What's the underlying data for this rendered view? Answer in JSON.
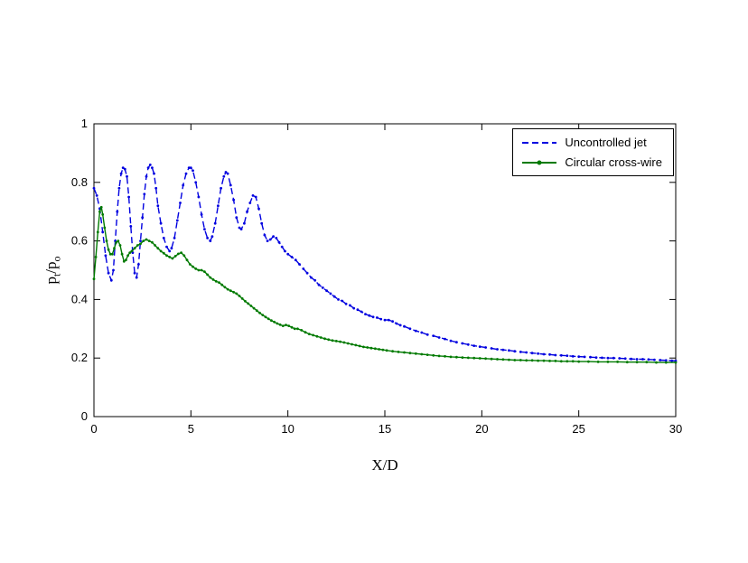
{
  "chart_data": {
    "type": "line",
    "title": "",
    "xlabel": "X/D",
    "ylabel": "pt/po",
    "ylabel_parts": {
      "p1": "p",
      "s1": "t",
      "sep": "/",
      "p2": "p",
      "s2": "o"
    },
    "xlim": [
      0,
      30
    ],
    "ylim": [
      0,
      1
    ],
    "x_ticks": [
      0,
      5,
      10,
      15,
      20,
      25,
      30
    ],
    "y_ticks": [
      0,
      0.2,
      0.4,
      0.6,
      0.8,
      1
    ],
    "grid": false,
    "legend_position": "top-right",
    "series": [
      {
        "name": "Uncontrolled jet",
        "color": "#0000e0",
        "line_style": "dashed",
        "marker": "dot",
        "points": [
          [
            0,
            0.78
          ],
          [
            0.15,
            0.755
          ],
          [
            0.3,
            0.71
          ],
          [
            0.45,
            0.63
          ],
          [
            0.6,
            0.55
          ],
          [
            0.75,
            0.49
          ],
          [
            0.9,
            0.465
          ],
          [
            1.0,
            0.5
          ],
          [
            1.1,
            0.6
          ],
          [
            1.2,
            0.7
          ],
          [
            1.3,
            0.78
          ],
          [
            1.4,
            0.83
          ],
          [
            1.5,
            0.85
          ],
          [
            1.6,
            0.845
          ],
          [
            1.7,
            0.82
          ],
          [
            1.8,
            0.75
          ],
          [
            1.9,
            0.65
          ],
          [
            2.0,
            0.56
          ],
          [
            2.1,
            0.49
          ],
          [
            2.2,
            0.475
          ],
          [
            2.3,
            0.52
          ],
          [
            2.4,
            0.6
          ],
          [
            2.5,
            0.68
          ],
          [
            2.6,
            0.76
          ],
          [
            2.7,
            0.82
          ],
          [
            2.8,
            0.85
          ],
          [
            2.9,
            0.86
          ],
          [
            3.0,
            0.85
          ],
          [
            3.1,
            0.83
          ],
          [
            3.2,
            0.78
          ],
          [
            3.3,
            0.72
          ],
          [
            3.45,
            0.66
          ],
          [
            3.6,
            0.61
          ],
          [
            3.75,
            0.58
          ],
          [
            3.9,
            0.565
          ],
          [
            4.0,
            0.575
          ],
          [
            4.15,
            0.61
          ],
          [
            4.3,
            0.67
          ],
          [
            4.45,
            0.73
          ],
          [
            4.6,
            0.79
          ],
          [
            4.75,
            0.83
          ],
          [
            4.9,
            0.85
          ],
          [
            5.0,
            0.85
          ],
          [
            5.1,
            0.84
          ],
          [
            5.25,
            0.8
          ],
          [
            5.4,
            0.75
          ],
          [
            5.55,
            0.69
          ],
          [
            5.7,
            0.64
          ],
          [
            5.85,
            0.61
          ],
          [
            6.0,
            0.6
          ],
          [
            6.1,
            0.615
          ],
          [
            6.25,
            0.66
          ],
          [
            6.4,
            0.72
          ],
          [
            6.55,
            0.78
          ],
          [
            6.7,
            0.82
          ],
          [
            6.8,
            0.835
          ],
          [
            6.9,
            0.83
          ],
          [
            7.05,
            0.79
          ],
          [
            7.2,
            0.74
          ],
          [
            7.35,
            0.68
          ],
          [
            7.5,
            0.645
          ],
          [
            7.6,
            0.64
          ],
          [
            7.75,
            0.66
          ],
          [
            7.9,
            0.7
          ],
          [
            8.05,
            0.73
          ],
          [
            8.2,
            0.755
          ],
          [
            8.35,
            0.75
          ],
          [
            8.5,
            0.71
          ],
          [
            8.65,
            0.66
          ],
          [
            8.8,
            0.62
          ],
          [
            8.95,
            0.6
          ],
          [
            9.1,
            0.605
          ],
          [
            9.25,
            0.615
          ],
          [
            9.4,
            0.61
          ],
          [
            9.55,
            0.595
          ],
          [
            9.7,
            0.58
          ],
          [
            9.85,
            0.565
          ],
          [
            10.0,
            0.555
          ],
          [
            10.2,
            0.545
          ],
          [
            10.4,
            0.535
          ],
          [
            10.6,
            0.52
          ],
          [
            10.8,
            0.505
          ],
          [
            11.0,
            0.49
          ],
          [
            11.2,
            0.475
          ],
          [
            11.4,
            0.465
          ],
          [
            11.6,
            0.45
          ],
          [
            11.8,
            0.44
          ],
          [
            12.0,
            0.43
          ],
          [
            12.2,
            0.42
          ],
          [
            12.4,
            0.41
          ],
          [
            12.6,
            0.4
          ],
          [
            12.8,
            0.395
          ],
          [
            13.0,
            0.385
          ],
          [
            13.2,
            0.38
          ],
          [
            13.4,
            0.37
          ],
          [
            13.6,
            0.365
          ],
          [
            13.8,
            0.358
          ],
          [
            14.0,
            0.35
          ],
          [
            14.2,
            0.345
          ],
          [
            14.4,
            0.34
          ],
          [
            14.6,
            0.338
          ],
          [
            14.8,
            0.333
          ],
          [
            15.0,
            0.33
          ],
          [
            15.2,
            0.33
          ],
          [
            15.4,
            0.325
          ],
          [
            15.6,
            0.318
          ],
          [
            15.8,
            0.312
          ],
          [
            16.0,
            0.308
          ],
          [
            16.3,
            0.3
          ],
          [
            16.6,
            0.293
          ],
          [
            16.9,
            0.287
          ],
          [
            17.2,
            0.28
          ],
          [
            17.5,
            0.276
          ],
          [
            17.8,
            0.27
          ],
          [
            18.1,
            0.265
          ],
          [
            18.4,
            0.259
          ],
          [
            18.7,
            0.254
          ],
          [
            19.0,
            0.25
          ],
          [
            19.3,
            0.246
          ],
          [
            19.6,
            0.242
          ],
          [
            19.9,
            0.239
          ],
          [
            20.2,
            0.236
          ],
          [
            20.5,
            0.233
          ],
          [
            20.8,
            0.23
          ],
          [
            21.1,
            0.228
          ],
          [
            21.4,
            0.226
          ],
          [
            21.7,
            0.223
          ],
          [
            22.0,
            0.221
          ],
          [
            22.3,
            0.219
          ],
          [
            22.6,
            0.217
          ],
          [
            22.9,
            0.215
          ],
          [
            23.2,
            0.213
          ],
          [
            23.5,
            0.212
          ],
          [
            23.8,
            0.21
          ],
          [
            24.1,
            0.209
          ],
          [
            24.4,
            0.208
          ],
          [
            24.7,
            0.206
          ],
          [
            25.0,
            0.205
          ],
          [
            25.3,
            0.204
          ],
          [
            25.6,
            0.203
          ],
          [
            25.9,
            0.202
          ],
          [
            26.2,
            0.201
          ],
          [
            26.5,
            0.2
          ],
          [
            26.8,
            0.2
          ],
          [
            27.1,
            0.199
          ],
          [
            27.4,
            0.198
          ],
          [
            27.7,
            0.197
          ],
          [
            28.0,
            0.196
          ],
          [
            28.3,
            0.196
          ],
          [
            28.6,
            0.195
          ],
          [
            28.9,
            0.194
          ],
          [
            29.2,
            0.193
          ],
          [
            29.5,
            0.192
          ],
          [
            29.8,
            0.191
          ],
          [
            30.0,
            0.19
          ]
        ]
      },
      {
        "name": "Circular cross-wire",
        "color": "#007a00",
        "line_style": "solid",
        "marker": "dot",
        "points": [
          [
            0,
            0.47
          ],
          [
            0.1,
            0.545
          ],
          [
            0.2,
            0.63
          ],
          [
            0.3,
            0.7
          ],
          [
            0.38,
            0.715
          ],
          [
            0.45,
            0.69
          ],
          [
            0.55,
            0.645
          ],
          [
            0.65,
            0.6
          ],
          [
            0.75,
            0.57
          ],
          [
            0.85,
            0.555
          ],
          [
            0.95,
            0.555
          ],
          [
            1.05,
            0.575
          ],
          [
            1.15,
            0.595
          ],
          [
            1.25,
            0.6
          ],
          [
            1.35,
            0.585
          ],
          [
            1.45,
            0.555
          ],
          [
            1.55,
            0.53
          ],
          [
            1.65,
            0.535
          ],
          [
            1.75,
            0.55
          ],
          [
            1.85,
            0.56
          ],
          [
            1.95,
            0.565
          ],
          [
            2.1,
            0.575
          ],
          [
            2.25,
            0.585
          ],
          [
            2.4,
            0.59
          ],
          [
            2.55,
            0.6
          ],
          [
            2.7,
            0.605
          ],
          [
            2.85,
            0.6
          ],
          [
            3.0,
            0.595
          ],
          [
            3.15,
            0.585
          ],
          [
            3.3,
            0.575
          ],
          [
            3.45,
            0.565
          ],
          [
            3.6,
            0.558
          ],
          [
            3.75,
            0.55
          ],
          [
            3.9,
            0.545
          ],
          [
            4.05,
            0.54
          ],
          [
            4.2,
            0.548
          ],
          [
            4.35,
            0.556
          ],
          [
            4.5,
            0.56
          ],
          [
            4.65,
            0.55
          ],
          [
            4.8,
            0.535
          ],
          [
            4.95,
            0.52
          ],
          [
            5.1,
            0.512
          ],
          [
            5.25,
            0.505
          ],
          [
            5.4,
            0.5
          ],
          [
            5.55,
            0.5
          ],
          [
            5.7,
            0.495
          ],
          [
            5.85,
            0.485
          ],
          [
            6.0,
            0.475
          ],
          [
            6.15,
            0.468
          ],
          [
            6.3,
            0.462
          ],
          [
            6.45,
            0.458
          ],
          [
            6.6,
            0.45
          ],
          [
            6.75,
            0.442
          ],
          [
            6.9,
            0.435
          ],
          [
            7.05,
            0.43
          ],
          [
            7.2,
            0.425
          ],
          [
            7.35,
            0.42
          ],
          [
            7.5,
            0.412
          ],
          [
            7.65,
            0.403
          ],
          [
            7.8,
            0.394
          ],
          [
            7.95,
            0.386
          ],
          [
            8.1,
            0.378
          ],
          [
            8.25,
            0.37
          ],
          [
            8.4,
            0.362
          ],
          [
            8.55,
            0.354
          ],
          [
            8.7,
            0.347
          ],
          [
            8.85,
            0.34
          ],
          [
            9.0,
            0.334
          ],
          [
            9.15,
            0.328
          ],
          [
            9.3,
            0.323
          ],
          [
            9.45,
            0.318
          ],
          [
            9.6,
            0.314
          ],
          [
            9.75,
            0.31
          ],
          [
            9.9,
            0.313
          ],
          [
            10.05,
            0.31
          ],
          [
            10.2,
            0.305
          ],
          [
            10.35,
            0.3
          ],
          [
            10.5,
            0.3
          ],
          [
            10.7,
            0.295
          ],
          [
            10.9,
            0.288
          ],
          [
            11.1,
            0.282
          ],
          [
            11.3,
            0.278
          ],
          [
            11.5,
            0.274
          ],
          [
            11.7,
            0.27
          ],
          [
            11.9,
            0.266
          ],
          [
            12.1,
            0.263
          ],
          [
            12.3,
            0.26
          ],
          [
            12.5,
            0.258
          ],
          [
            12.7,
            0.256
          ],
          [
            12.9,
            0.253
          ],
          [
            13.1,
            0.25
          ],
          [
            13.3,
            0.247
          ],
          [
            13.5,
            0.244
          ],
          [
            13.7,
            0.241
          ],
          [
            13.9,
            0.238
          ],
          [
            14.1,
            0.236
          ],
          [
            14.3,
            0.234
          ],
          [
            14.5,
            0.232
          ],
          [
            14.7,
            0.23
          ],
          [
            14.9,
            0.228
          ],
          [
            15.1,
            0.226
          ],
          [
            15.4,
            0.223
          ],
          [
            15.7,
            0.221
          ],
          [
            16.0,
            0.219
          ],
          [
            16.3,
            0.217
          ],
          [
            16.6,
            0.215
          ],
          [
            16.9,
            0.213
          ],
          [
            17.2,
            0.211
          ],
          [
            17.5,
            0.209
          ],
          [
            17.8,
            0.207
          ],
          [
            18.1,
            0.206
          ],
          [
            18.4,
            0.204
          ],
          [
            18.7,
            0.203
          ],
          [
            19.0,
            0.202
          ],
          [
            19.3,
            0.201
          ],
          [
            19.6,
            0.2
          ],
          [
            19.9,
            0.199
          ],
          [
            20.2,
            0.198
          ],
          [
            20.5,
            0.197
          ],
          [
            20.8,
            0.196
          ],
          [
            21.1,
            0.195
          ],
          [
            21.4,
            0.194
          ],
          [
            21.7,
            0.193
          ],
          [
            22.0,
            0.193
          ],
          [
            22.3,
            0.192
          ],
          [
            22.6,
            0.192
          ],
          [
            22.9,
            0.191
          ],
          [
            23.2,
            0.191
          ],
          [
            23.5,
            0.19
          ],
          [
            23.8,
            0.19
          ],
          [
            24.1,
            0.189
          ],
          [
            24.4,
            0.189
          ],
          [
            24.7,
            0.189
          ],
          [
            25.0,
            0.188
          ],
          [
            25.5,
            0.188
          ],
          [
            26.0,
            0.187
          ],
          [
            26.5,
            0.187
          ],
          [
            27.0,
            0.187
          ],
          [
            27.5,
            0.186
          ],
          [
            28.0,
            0.186
          ],
          [
            28.5,
            0.186
          ],
          [
            29.0,
            0.185
          ],
          [
            29.5,
            0.185
          ],
          [
            30.0,
            0.185
          ]
        ]
      }
    ]
  }
}
